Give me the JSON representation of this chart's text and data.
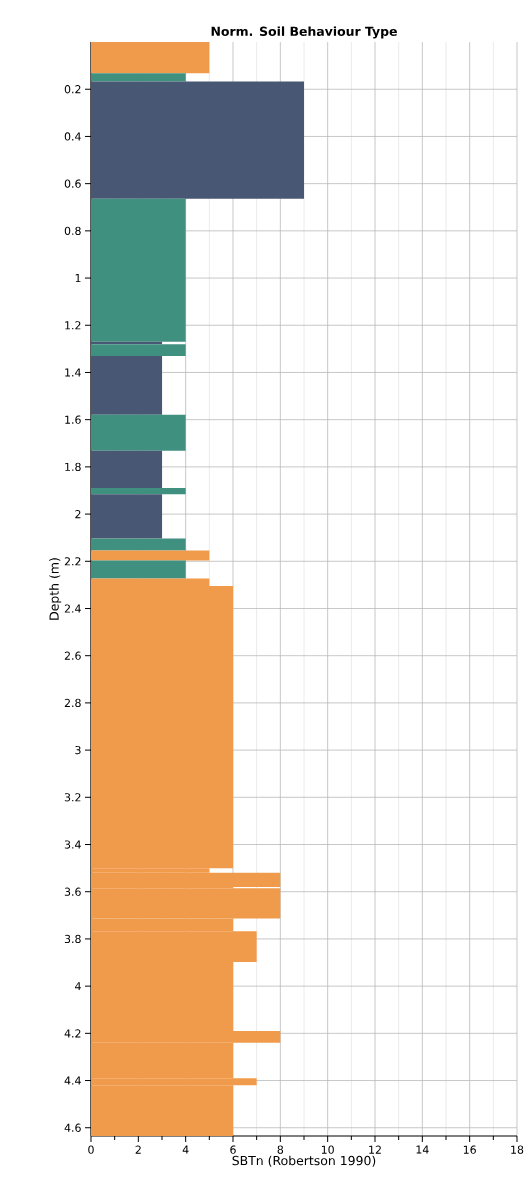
{
  "chart_data": {
    "type": "bar",
    "orientation": "horizontal",
    "title": "Norm. Soil Behaviour Type",
    "xlabel": "SBTn (Robertson 1990)",
    "ylabel": "Depth (m)",
    "x": [
      0.066,
      0.1495,
      0.4155,
      0.967,
      1.275,
      1.305,
      1.4545,
      1.6555,
      1.8105,
      1.9025,
      2.0095,
      2.1285,
      2.1755,
      2.235,
      2.289,
      2.903,
      3.5105,
      3.55,
      3.5825,
      3.649,
      3.7405,
      3.833,
      4.044,
      4.215,
      4.315,
      4.405,
      4.5275
    ],
    "values": [
      5,
      4,
      9,
      4,
      3,
      4,
      3,
      4,
      3,
      4,
      3,
      4,
      5,
      4,
      5,
      6,
      5,
      8,
      6,
      8,
      6,
      7,
      6,
      8,
      6,
      7,
      6
    ],
    "colors": [
      "#f09b4b",
      "#409080",
      "#485774",
      "#409080",
      "#485774",
      "#409080",
      "#485774",
      "#409080",
      "#485774",
      "#409080",
      "#485774",
      "#409080",
      "#f09b4b",
      "#409080",
      "#f09b4b",
      "#f09b4b",
      "#f09b4b",
      "#f09b4b",
      "#f09b4b",
      "#f09b4b",
      "#f09b4b",
      "#f09b4b",
      "#f09b4b",
      "#f09b4b",
      "#f09b4b",
      "#f09b4b",
      "#f09b4b"
    ],
    "xlim": [
      0,
      18
    ],
    "xticks": [
      0,
      2,
      4,
      6,
      8,
      10,
      12,
      14,
      16,
      18
    ],
    "ylim": [
      4.635,
      0
    ],
    "yticks": [
      0.2,
      0.4,
      0.6,
      0.8,
      1,
      1.2,
      1.4,
      1.6,
      1.8,
      2,
      2.2,
      2.4,
      2.6,
      2.8,
      3,
      3.2,
      3.4,
      3.6,
      3.8,
      4,
      4.2,
      4.4,
      4.6
    ],
    "grid": true
  }
}
